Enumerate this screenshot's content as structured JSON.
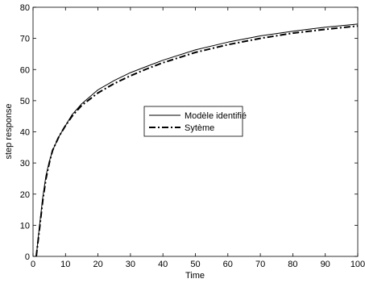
{
  "chart_data": {
    "type": "line",
    "title": "",
    "xlabel": "Time",
    "ylabel": "step response",
    "xlim": [
      0,
      100
    ],
    "ylim": [
      0,
      80
    ],
    "xticks": [
      0,
      10,
      20,
      30,
      40,
      50,
      60,
      70,
      80,
      90,
      100
    ],
    "yticks": [
      0,
      10,
      20,
      30,
      40,
      50,
      60,
      70,
      80
    ],
    "grid": false,
    "legend_position": "center",
    "series": [
      {
        "name": "Modèle identifié",
        "style": "solid",
        "color": "#000000",
        "x": [
          1,
          2,
          3,
          4,
          5,
          6,
          8,
          10,
          12,
          15,
          20,
          25,
          30,
          35,
          40,
          50,
          60,
          70,
          80,
          90,
          100
        ],
        "y": [
          0,
          10,
          19,
          26,
          30.5,
          34,
          38.5,
          42,
          45.5,
          49,
          53.5,
          56.5,
          59,
          61,
          63,
          66.3,
          68.8,
          70.8,
          72.3,
          73.6,
          74.6
        ]
      },
      {
        "name": "Sytème",
        "style": "dashdot",
        "color": "#000000",
        "x": [
          1,
          2,
          3,
          4,
          5,
          6,
          8,
          10,
          12,
          15,
          20,
          25,
          30,
          35,
          40,
          50,
          60,
          70,
          80,
          90,
          100
        ],
        "y": [
          0,
          9,
          18,
          25,
          30,
          34,
          38.5,
          42,
          45,
          48.5,
          52.5,
          55.5,
          58,
          60.2,
          62.2,
          65.5,
          68,
          70,
          71.7,
          72.9,
          74
        ]
      }
    ]
  }
}
